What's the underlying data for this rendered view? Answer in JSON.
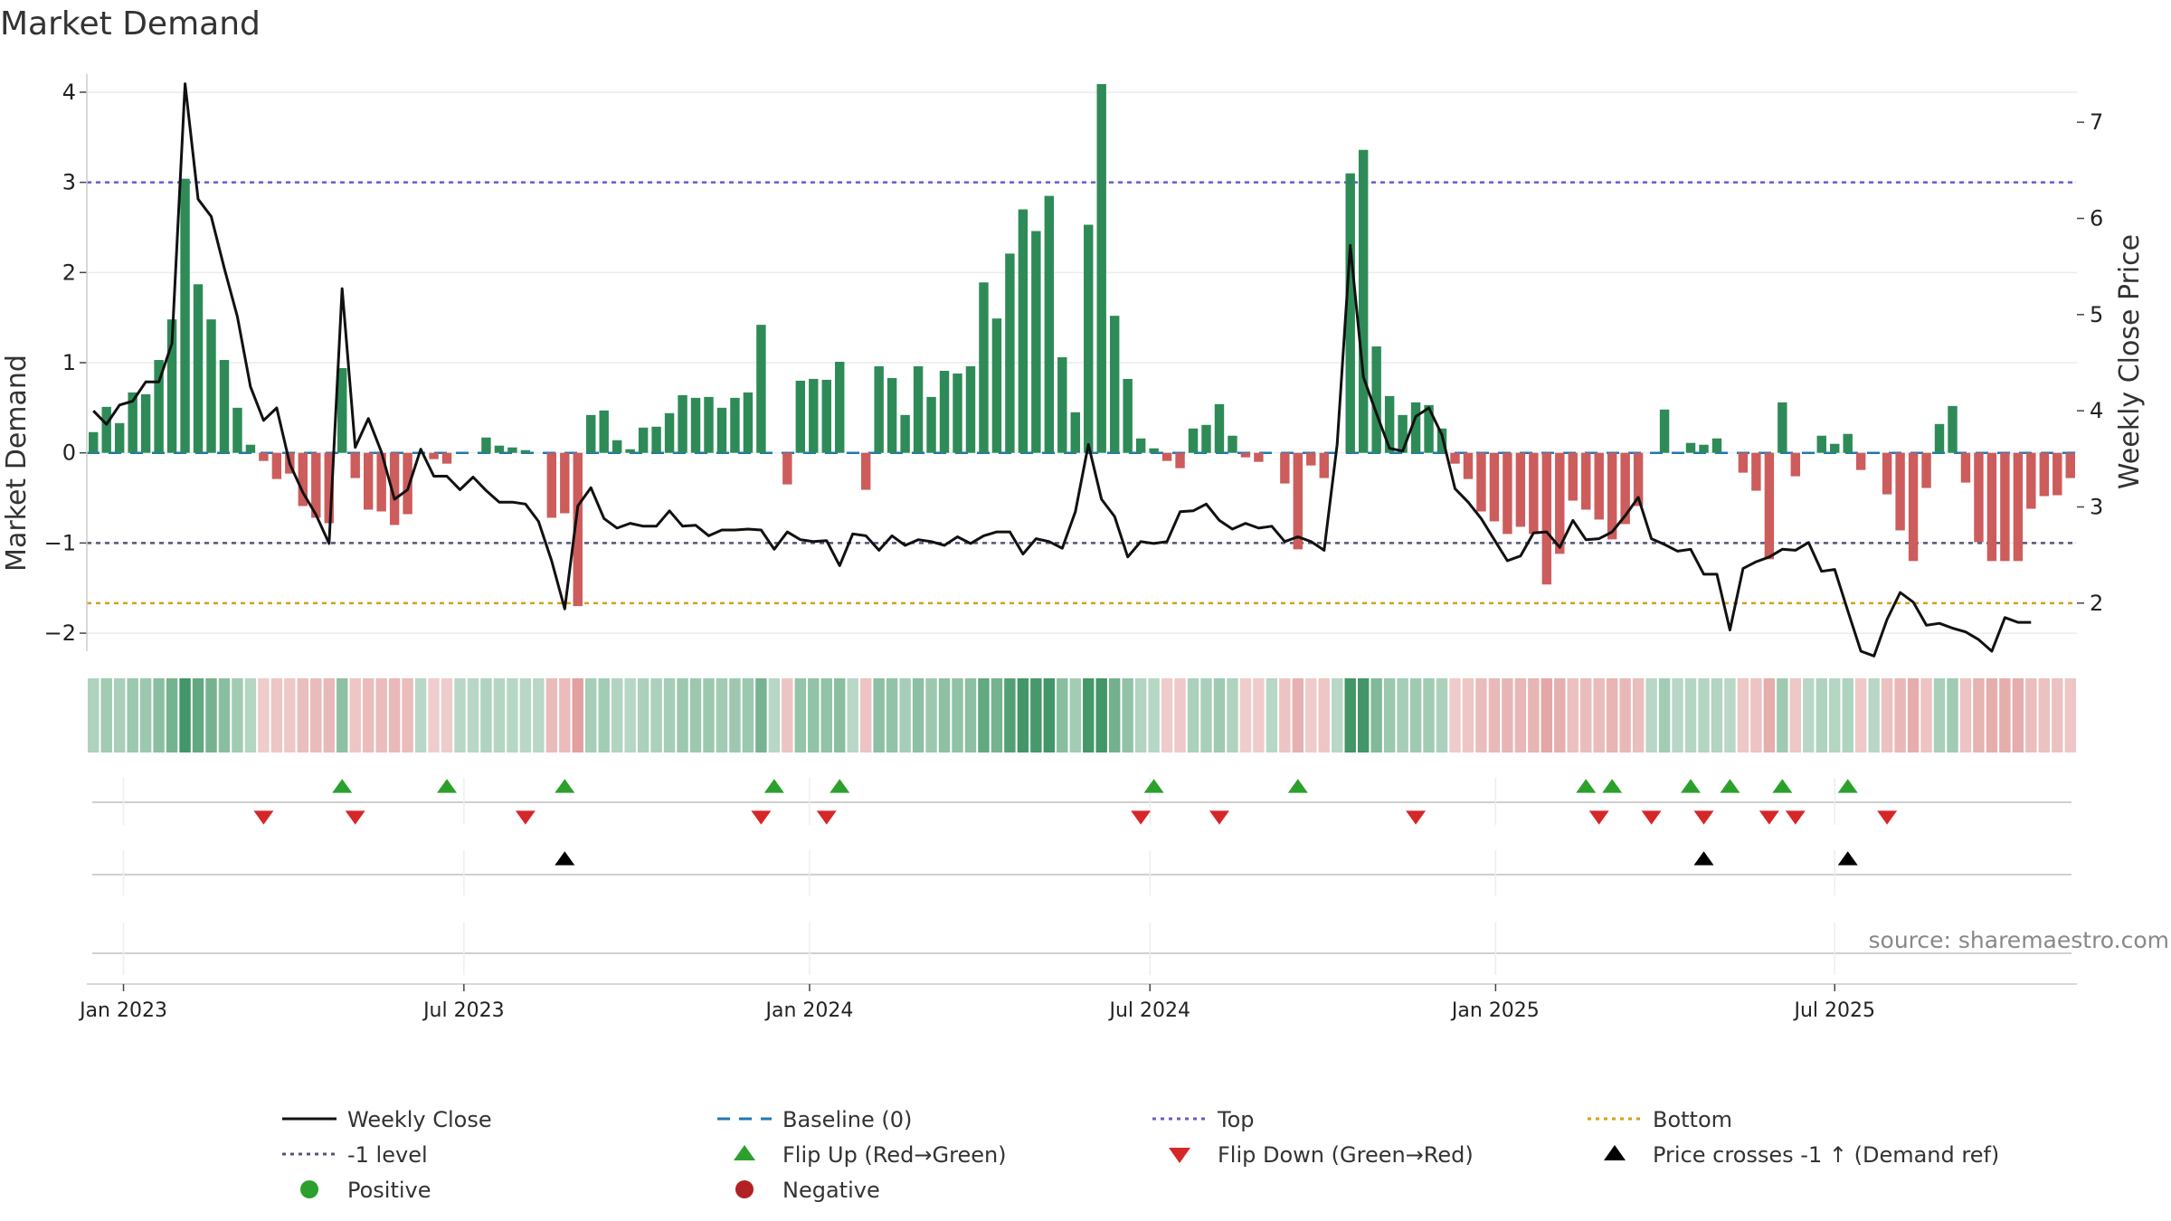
{
  "chart_data": {
    "type": "bar",
    "title": "Market Demand",
    "ylabel_left": "Market Demand",
    "ylabel_right": "Weekly Close Price",
    "ylim_left": [
      -2.2,
      4.2
    ],
    "ylim_right": [
      1.5,
      7.5
    ],
    "yticks_left": [
      "4",
      "3",
      "2",
      "1",
      "0",
      "−1",
      "−2"
    ],
    "yticks_left_values": [
      4,
      3,
      2,
      1,
      0,
      -1,
      -2
    ],
    "yticks_right": [
      "7",
      "6",
      "5",
      "4",
      "3",
      "2"
    ],
    "yticks_right_values": [
      7,
      6,
      5,
      4,
      3,
      2
    ],
    "reference_lines": {
      "top": 3,
      "minus_one": -1,
      "bottom_price": 2.0,
      "baseline": 0
    },
    "date_ticks": [
      {
        "label": "Jan 2023",
        "week": 2.8
      },
      {
        "label": "Jul 2023",
        "week": 28.8
      },
      {
        "label": "Jan 2024",
        "week": 55.2
      },
      {
        "label": "Jul 2024",
        "week": 81.2
      },
      {
        "label": "Jan 2025",
        "week": 107.6
      },
      {
        "label": "Jul 2025",
        "week": 133.5
      }
    ],
    "series": [
      {
        "name": "Market Demand",
        "values": [
          0.23,
          0.51,
          0.33,
          0.67,
          0.65,
          1.03,
          1.48,
          3.04,
          1.87,
          1.48,
          1.03,
          0.5,
          0.09,
          -0.09,
          -0.29,
          -0.23,
          -0.59,
          -0.72,
          -0.78,
          0.94,
          -0.28,
          -0.63,
          -0.65,
          -0.8,
          -0.68,
          0.0,
          -0.07,
          -0.12,
          0.0,
          0.0,
          0.17,
          0.08,
          0.06,
          0.03,
          0.0,
          -0.72,
          -0.67,
          -1.7,
          0.42,
          0.47,
          0.14,
          0.04,
          0.28,
          0.29,
          0.44,
          0.64,
          0.61,
          0.62,
          0.5,
          0.61,
          0.67,
          1.42,
          0.0,
          -0.35,
          0.8,
          0.82,
          0.81,
          1.01,
          0.0,
          -0.41,
          0.96,
          0.83,
          0.42,
          0.96,
          0.62,
          0.91,
          0.88,
          0.96,
          1.89,
          1.49,
          2.21,
          2.7,
          2.46,
          2.85,
          1.06,
          0.45,
          2.53,
          4.09,
          1.52,
          0.82,
          0.16,
          0.05,
          -0.09,
          -0.17,
          0.27,
          0.31,
          0.54,
          0.19,
          -0.05,
          -0.1,
          0.0,
          -0.34,
          -1.07,
          -0.14,
          -0.28,
          0.0,
          3.1,
          3.36,
          1.18,
          0.63,
          0.42,
          0.56,
          0.53,
          0.27,
          -0.12,
          -0.29,
          -0.65,
          -0.76,
          -0.9,
          -0.82,
          -0.9,
          -1.46,
          -1.12,
          -0.53,
          -0.63,
          -0.74,
          -0.96,
          -0.79,
          -0.59,
          0.0,
          0.48,
          0.0,
          0.11,
          0.09,
          0.16,
          0.0,
          -0.22,
          -0.42,
          -1.18,
          0.56,
          -0.26,
          0.0,
          0.19,
          0.1,
          0.21,
          -0.19,
          0.0,
          -0.46,
          -0.86,
          -1.2,
          -0.39,
          0.32,
          0.52,
          -0.33,
          -0.99,
          -1.2,
          -1.2,
          -1.2,
          -0.62,
          -0.48,
          -0.47,
          -0.28
        ]
      },
      {
        "name": "Weekly Close",
        "values": [
          4.0,
          3.86,
          4.06,
          4.1,
          4.3,
          4.3,
          4.7,
          7.4,
          6.2,
          6.02,
          5.48,
          4.98,
          4.25,
          3.9,
          4.03,
          3.45,
          3.15,
          2.92,
          2.62,
          5.27,
          3.62,
          3.92,
          3.57,
          3.08,
          3.18,
          3.6,
          3.32,
          3.32,
          3.18,
          3.31,
          3.17,
          3.05,
          3.05,
          3.03,
          2.85,
          2.44,
          1.94,
          3.01,
          3.2,
          2.88,
          2.78,
          2.83,
          2.8,
          2.8,
          2.96,
          2.8,
          2.81,
          2.7,
          2.76,
          2.76,
          2.77,
          2.76,
          2.56,
          2.74,
          2.66,
          2.64,
          2.65,
          2.39,
          2.72,
          2.7,
          2.55,
          2.7,
          2.6,
          2.66,
          2.64,
          2.6,
          2.69,
          2.62,
          2.7,
          2.74,
          2.74,
          2.51,
          2.67,
          2.64,
          2.57,
          2.95,
          3.65,
          3.08,
          2.9,
          2.48,
          2.64,
          2.62,
          2.64,
          2.95,
          2.96,
          3.03,
          2.86,
          2.77,
          2.83,
          2.78,
          2.8,
          2.64,
          2.69,
          2.64,
          2.55,
          3.65,
          5.72,
          4.35,
          3.97,
          3.61,
          3.58,
          3.94,
          4.03,
          3.75,
          3.19,
          3.05,
          2.88,
          2.66,
          2.44,
          2.49,
          2.73,
          2.74,
          2.58,
          2.86,
          2.66,
          2.67,
          2.74,
          2.91,
          3.1,
          2.67,
          2.61,
          2.54,
          2.56,
          2.3,
          2.3,
          1.72,
          2.36,
          2.43,
          2.48,
          2.56,
          2.55,
          2.63,
          2.33,
          2.35,
          1.92,
          1.5,
          1.45,
          1.83,
          2.11,
          2.01,
          1.77,
          1.79,
          1.74,
          1.7,
          1.62,
          1.5,
          1.85,
          1.8,
          1.8
        ]
      }
    ],
    "flip_up_weeks": [
      19,
      27,
      36,
      52,
      57,
      81,
      92,
      114,
      116,
      122,
      125,
      129,
      134
    ],
    "flip_down_weeks": [
      13,
      20,
      33,
      51,
      56,
      80,
      86,
      101,
      115,
      119,
      123,
      128,
      130,
      137
    ],
    "price_cross_weeks": [
      36,
      123,
      134
    ],
    "legend": [
      {
        "label": "Weekly Close",
        "marker": "line",
        "color": "#111111"
      },
      {
        "label": "Baseline (0)",
        "marker": "dash",
        "color": "#1f77b4"
      },
      {
        "label": "Top",
        "marker": "dot-line",
        "color": "#6a5acd"
      },
      {
        "label": "Bottom",
        "marker": "dot-line",
        "color": "#d4a017"
      },
      {
        "label": "-1 level",
        "marker": "dot-line",
        "color": "#555577"
      },
      {
        "label": "Flip Up (Red→Green)",
        "marker": "triangle-up",
        "color": "#2ca02c"
      },
      {
        "label": "Flip Down (Green→Red)",
        "marker": "triangle-down",
        "color": "#d62728"
      },
      {
        "label": "Price crosses -1 ↑ (Demand ref)",
        "marker": "triangle-up",
        "color": "#000000"
      },
      {
        "label": "Positive",
        "marker": "circle",
        "color": "#2ca02c"
      },
      {
        "label": "Negative",
        "marker": "circle",
        "color": "#b22222"
      }
    ],
    "source": "source: sharemaestro.com"
  }
}
